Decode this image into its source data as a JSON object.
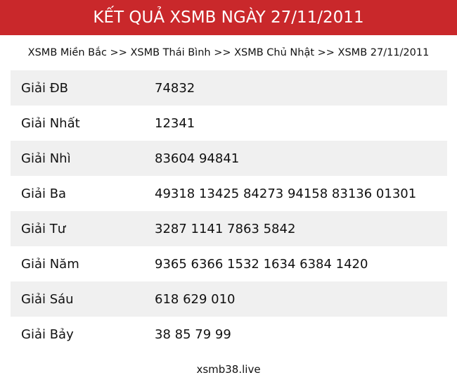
{
  "header": {
    "title": "KẾT QUẢ XSMB NGÀY 27/11/2011"
  },
  "breadcrumb": "XSMB Miền Bắc >> XSMB Thái Bình >> XSMB Chủ Nhật >> XSMB 27/11/2011",
  "results": [
    {
      "label": "Giải ĐB",
      "value": "74832"
    },
    {
      "label": "Giải Nhất",
      "value": "12341"
    },
    {
      "label": "Giải Nhì",
      "value": "83604 94841"
    },
    {
      "label": "Giải Ba",
      "value": "49318 13425 84273 94158 83136 01301"
    },
    {
      "label": "Giải Tư",
      "value": "3287 1141 7863 5842"
    },
    {
      "label": "Giải Năm",
      "value": "9365 6366 1532 1634 6384 1420"
    },
    {
      "label": "Giải Sáu",
      "value": "618 629 010"
    },
    {
      "label": "Giải Bảy",
      "value": "38 85 79 99"
    }
  ],
  "footer": "xsmb38.live",
  "colors": {
    "header_bg": "#c9282b",
    "row_alt": "#f0f0f0"
  }
}
